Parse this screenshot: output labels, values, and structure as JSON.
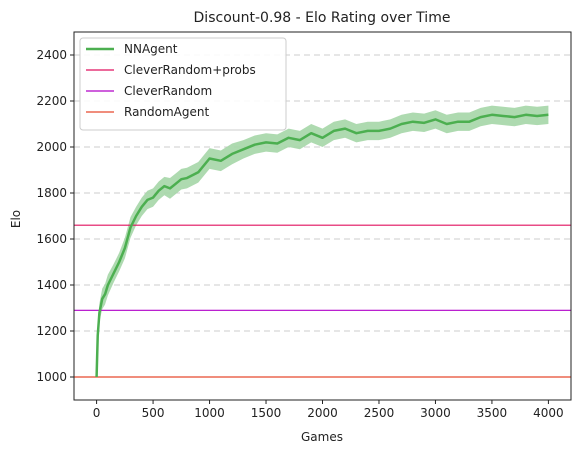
{
  "chart_data": {
    "type": "line",
    "title": "Discount-0.98 - Elo Rating over Time",
    "xlabel": "Games",
    "ylabel": "Elo",
    "xlim": [
      -200,
      4200
    ],
    "ylim": [
      900,
      2500
    ],
    "xticks": [
      0,
      500,
      1000,
      1500,
      2000,
      2500,
      3000,
      3500,
      4000
    ],
    "yticks": [
      1000,
      1200,
      1400,
      1600,
      1800,
      2000,
      2200,
      2400
    ],
    "grid": "horizontal-dashed",
    "legend_position": "top-left",
    "series": [
      {
        "name": "NNAgent",
        "color": "#4caf50",
        "band_color": "#a5d6a7",
        "x": [
          0,
          10,
          25,
          50,
          75,
          100,
          150,
          200,
          250,
          300,
          350,
          400,
          450,
          500,
          550,
          600,
          650,
          700,
          750,
          800,
          900,
          1000,
          1100,
          1200,
          1300,
          1400,
          1500,
          1600,
          1700,
          1800,
          1900,
          2000,
          2100,
          2200,
          2300,
          2400,
          2500,
          2600,
          2700,
          2800,
          2900,
          3000,
          3100,
          3200,
          3300,
          3400,
          3500,
          3600,
          3700,
          3800,
          3900,
          4000
        ],
        "y": [
          1000,
          1180,
          1280,
          1340,
          1360,
          1400,
          1450,
          1500,
          1560,
          1650,
          1700,
          1740,
          1770,
          1780,
          1810,
          1830,
          1820,
          1840,
          1860,
          1865,
          1890,
          1950,
          1940,
          1970,
          1990,
          2010,
          2020,
          2015,
          2040,
          2030,
          2060,
          2040,
          2070,
          2080,
          2060,
          2070,
          2070,
          2080,
          2100,
          2110,
          2105,
          2120,
          2100,
          2110,
          2110,
          2130,
          2140,
          2135,
          2130,
          2140,
          2135,
          2140
        ],
        "band_halfwidth": [
          5,
          30,
          40,
          45,
          45,
          45,
          40,
          40,
          45,
          45,
          40,
          40,
          40,
          40,
          40,
          40,
          45,
          45,
          45,
          45,
          45,
          45,
          45,
          45,
          40,
          40,
          40,
          40,
          40,
          40,
          40,
          40,
          40,
          40,
          40,
          40,
          40,
          40,
          40,
          40,
          40,
          40,
          40,
          40,
          40,
          40,
          40,
          40,
          40,
          40,
          40,
          40
        ]
      },
      {
        "name": "CleverRandom+probs",
        "color": "#e0115f",
        "hline": 1660
      },
      {
        "name": "CleverRandom",
        "color": "#b000c8",
        "hline": 1290
      },
      {
        "name": "RandomAgent",
        "color": "#e8492e",
        "hline": 1000
      }
    ]
  }
}
